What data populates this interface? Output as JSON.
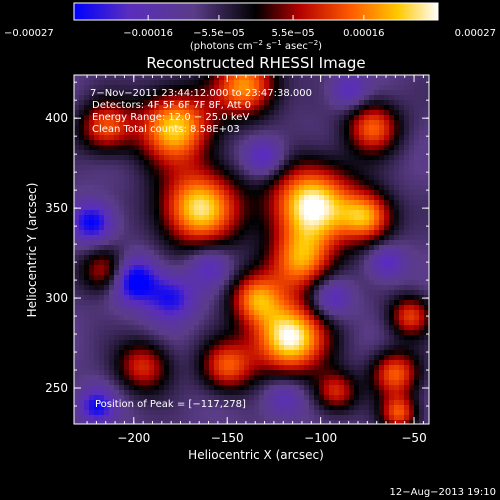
{
  "chart_data": {
    "type": "heatmap",
    "title": "Reconstructed RHESSI Image",
    "xlabel": "Heliocentric X (arcsec)",
    "ylabel": "Heliocentric Y (arcsec)",
    "xlim": [
      -232,
      -42
    ],
    "ylim": [
      230,
      424
    ],
    "x_ticks": [
      -200,
      -150,
      -100,
      -50
    ],
    "y_ticks": [
      250,
      300,
      350,
      400
    ],
    "x_tick_labels": [
      "−200",
      "−150",
      "−100",
      "−50"
    ],
    "y_tick_labels": [
      "250",
      "300",
      "350",
      "400"
    ],
    "colorbar": {
      "range": [
        -0.00027,
        0.00027
      ],
      "ticks": [
        -0.00027,
        -0.00016,
        -5.5e-05,
        5.5e-05,
        0.00016,
        0.00027
      ],
      "tick_labels": [
        "−0.00027",
        "−0.00016",
        "−5.5e−05",
        "5.5e−05",
        "0.00016",
        "0.00027"
      ],
      "label_main": "(photons cm",
      "label_exp1": "−2",
      "label_mid": " s",
      "label_exp2": "−1",
      "label_mid2": " asec",
      "label_exp3": "−2",
      "label_end": ")",
      "colors": [
        "#0000ff",
        "#5a2dbe",
        "#5a3c87",
        "#000000",
        "#b40000",
        "#ff5a00",
        "#ffc800",
        "#ffffff"
      ]
    },
    "annotations": [
      "7−Nov−2011 23:44:12.000 to 23:47:38.000",
      "Detectors: 4F 5F 6F 7F 8F, Att 0",
      "Energy Range: 12.0 − 25.0 keV",
      "Clean     Total counts: 8.58E+03"
    ],
    "peak_label": "Position of Peak = [−117,278]",
    "peak": [
      -117,
      278
    ],
    "sources": [
      {
        "x": -117,
        "y": 278,
        "strength": 1.0,
        "radius": 14
      },
      {
        "x": -105,
        "y": 352,
        "strength": 0.95,
        "radius": 16
      },
      {
        "x": -165,
        "y": 350,
        "strength": 0.85,
        "radius": 15
      },
      {
        "x": -178,
        "y": 395,
        "strength": 0.8,
        "radius": 14
      },
      {
        "x": -140,
        "y": 418,
        "strength": 0.65,
        "radius": 12
      },
      {
        "x": -75,
        "y": 345,
        "strength": 0.6,
        "radius": 10
      },
      {
        "x": -72,
        "y": 395,
        "strength": 0.5,
        "radius": 10
      },
      {
        "x": -110,
        "y": 320,
        "strength": 0.55,
        "radius": 12
      },
      {
        "x": -215,
        "y": 395,
        "strength": 0.45,
        "radius": 10
      },
      {
        "x": -135,
        "y": 300,
        "strength": 0.5,
        "radius": 10
      },
      {
        "x": -150,
        "y": 262,
        "strength": 0.45,
        "radius": 10
      },
      {
        "x": -195,
        "y": 262,
        "strength": 0.35,
        "radius": 10
      },
      {
        "x": -60,
        "y": 258,
        "strength": 0.5,
        "radius": 9
      },
      {
        "x": -52,
        "y": 290,
        "strength": 0.4,
        "radius": 8
      },
      {
        "x": -92,
        "y": 248,
        "strength": 0.35,
        "radius": 8
      },
      {
        "x": -215,
        "y": 315,
        "strength": 0.35,
        "radius": 9
      },
      {
        "x": -58,
        "y": 236,
        "strength": 0.45,
        "radius": 7
      },
      {
        "x": -200,
        "y": 310,
        "strength": -0.85,
        "radius": 9
      },
      {
        "x": -222,
        "y": 342,
        "strength": -0.7,
        "radius": 8
      },
      {
        "x": -180,
        "y": 300,
        "strength": -0.6,
        "radius": 9
      },
      {
        "x": -220,
        "y": 240,
        "strength": -0.6,
        "radius": 7
      },
      {
        "x": -130,
        "y": 378,
        "strength": -0.55,
        "radius": 8
      },
      {
        "x": -95,
        "y": 300,
        "strength": -0.5,
        "radius": 8
      },
      {
        "x": -65,
        "y": 320,
        "strength": -0.45,
        "radius": 7
      },
      {
        "x": -160,
        "y": 318,
        "strength": -0.4,
        "radius": 8
      },
      {
        "x": -85,
        "y": 415,
        "strength": -0.4,
        "radius": 7
      },
      {
        "x": -120,
        "y": 245,
        "strength": -0.4,
        "radius": 8
      }
    ]
  },
  "footer": {
    "date": "12−Aug−2013 19:10"
  }
}
